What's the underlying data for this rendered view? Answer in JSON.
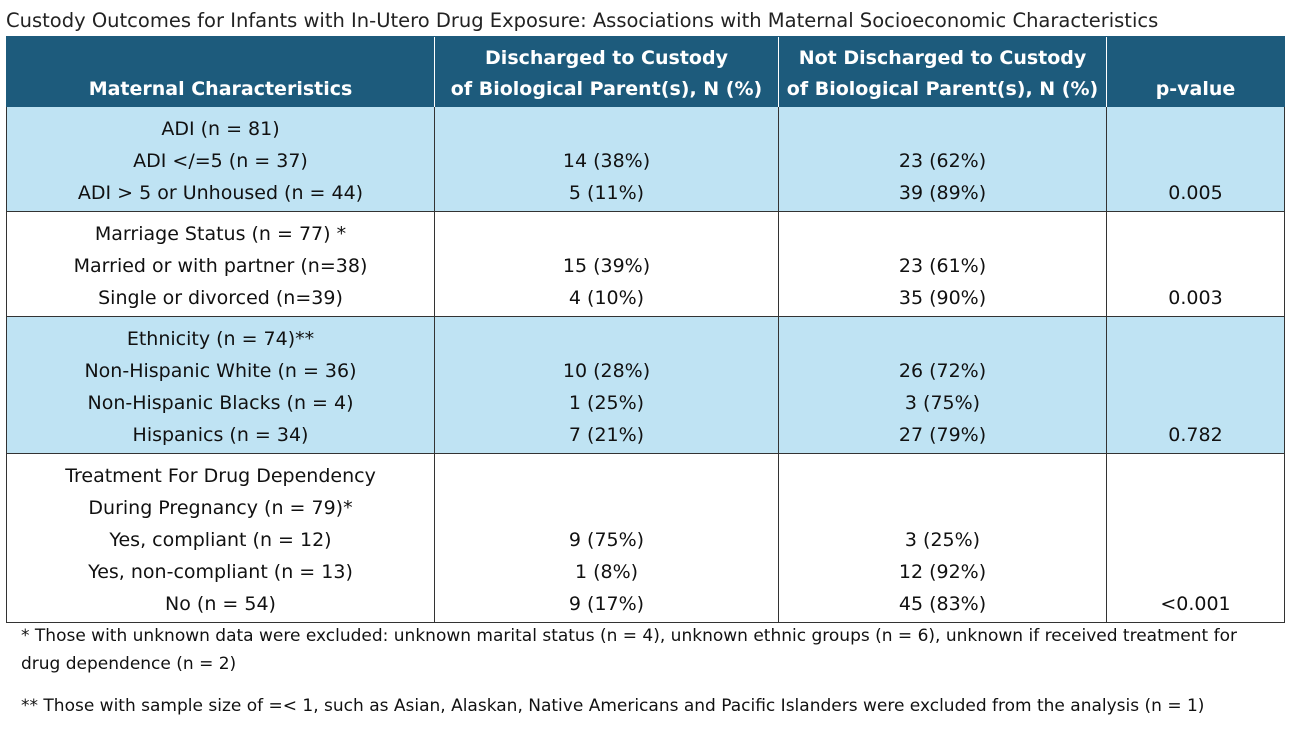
{
  "title": "Custody Outcomes for Infants with In-Utero Drug Exposure: Associations with Maternal Socioeconomic Characteristics",
  "colors": {
    "header_bg": "#1d5b7c",
    "shade_bg": "#bfe3f3"
  },
  "table": {
    "headers": {
      "characteristics": "Maternal Characteristics",
      "discharged_line1": "Discharged to Custody",
      "discharged_line2": "of Biological Parent(s), N (%)",
      "not_discharged_line1": "Not Discharged to Custody",
      "not_discharged_line2": "of Biological Parent(s), N (%)",
      "pvalue": "p-value"
    },
    "groups": [
      {
        "shaded": true,
        "label_lines": [
          "ADI (n = 81)"
        ],
        "rows": [
          {
            "label": "ADI </=5 (n = 37)",
            "discharged": "14 (38%)",
            "not_discharged": "23 (62%)"
          },
          {
            "label": "ADI > 5 or Unhoused (n = 44)",
            "discharged": "5 (11%)",
            "not_discharged": "39 (89%)"
          }
        ],
        "pvalue": "0.005"
      },
      {
        "shaded": false,
        "label_lines": [
          "Marriage Status (n = 77) *"
        ],
        "rows": [
          {
            "label": "Married or with partner (n=38)",
            "discharged": "15 (39%)",
            "not_discharged": "23 (61%)"
          },
          {
            "label": "Single or divorced (n=39)",
            "discharged": "4 (10%)",
            "not_discharged": "35 (90%)"
          }
        ],
        "pvalue": "0.003"
      },
      {
        "shaded": true,
        "label_lines": [
          "Ethnicity (n = 74)**"
        ],
        "rows": [
          {
            "label": "Non-Hispanic White (n = 36)",
            "discharged": "10 (28%)",
            "not_discharged": "26 (72%)"
          },
          {
            "label": "Non-Hispanic Blacks (n = 4)",
            "discharged": "1 (25%)",
            "not_discharged": "3 (75%)"
          },
          {
            "label": "Hispanics (n = 34)",
            "discharged": "7 (21%)",
            "not_discharged": "27 (79%)"
          }
        ],
        "pvalue": "0.782"
      },
      {
        "shaded": false,
        "label_lines": [
          "Treatment For Drug Dependency",
          "During Pregnancy (n = 79)*"
        ],
        "rows": [
          {
            "label": "Yes, compliant (n = 12)",
            "discharged": "9 (75%)",
            "not_discharged": "3 (25%)"
          },
          {
            "label": "Yes, non-compliant (n = 13)",
            "discharged": "1 (8%)",
            "not_discharged": "12 (92%)"
          },
          {
            "label": "No (n = 54)",
            "discharged": "9 (17%)",
            "not_discharged": "45 (83%)"
          }
        ],
        "pvalue": "<0.001"
      }
    ]
  },
  "footnotes": {
    "note1": "* Those with unknown data were excluded: unknown marital status (n = 4), unknown ethnic groups (n = 6), unknown if received treatment for drug dependence (n = 2)",
    "note2": "** Those with sample size of =< 1, such as Asian, Alaskan, Native Americans and Pacific Islanders were excluded from the analysis (n = 1)"
  }
}
